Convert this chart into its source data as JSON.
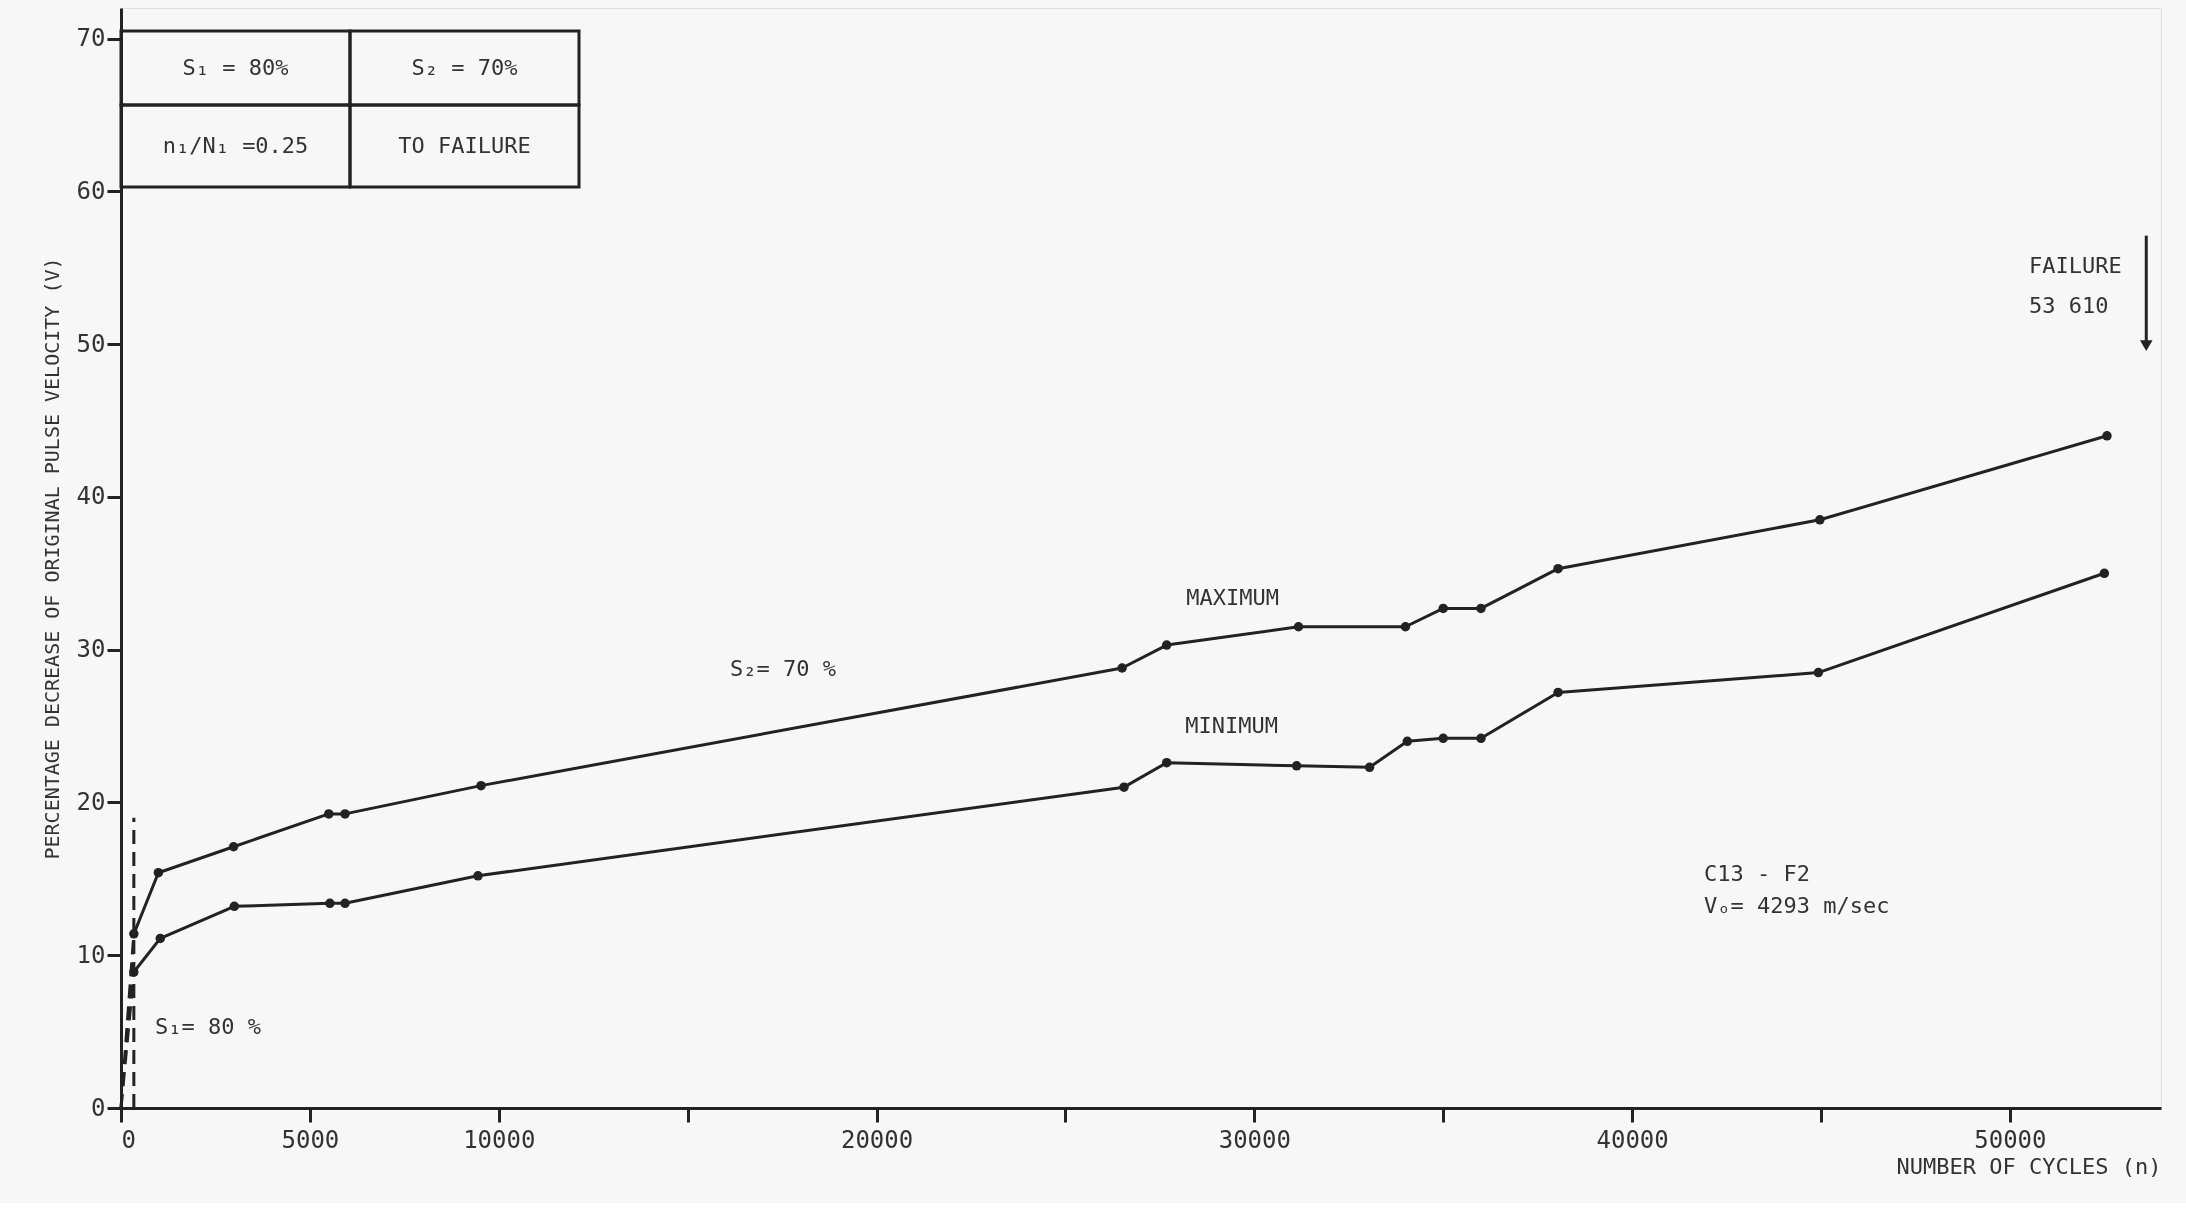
{
  "chart_data": {
    "type": "line",
    "xlabel": "NUMBER OF CYCLES (n)",
    "ylabel": "PERCENTAGE DECREASE OF ORIGINAL PULSE VELOCITY (V)",
    "xlim": [
      0,
      54000
    ],
    "ylim": [
      0,
      72
    ],
    "xticks": [
      0,
      5000,
      10000,
      {
        "value": 15000,
        "label": null
      },
      20000,
      {
        "value": 25000,
        "label": null
      },
      30000,
      {
        "value": 35000,
        "label": null
      },
      40000,
      {
        "value": 45000,
        "label": null
      },
      50000
    ],
    "yticks": [
      0,
      10,
      20,
      30,
      40,
      50,
      60,
      70
    ],
    "grid": false,
    "series": [
      {
        "name": "MAXIMUM",
        "color": "#222222",
        "marker": "circle",
        "line_style": "solid",
        "x": [
          340,
          990,
          2980,
          5500,
          5930,
          9530,
          26500,
          27680,
          31170,
          34000,
          35000,
          36000,
          38040,
          44970,
          52570
        ],
        "values": [
          11.4,
          15.4,
          17.1,
          19.25,
          19.25,
          21.1,
          28.8,
          30.3,
          31.5,
          31.5,
          32.7,
          32.7,
          35.3,
          38.5,
          44.0
        ]
      },
      {
        "name": "MINIMUM",
        "color": "#222222",
        "marker": "circle",
        "line_style": "solid",
        "x": [
          340,
          1040,
          3000,
          5530,
          5930,
          9450,
          26550,
          27680,
          31120,
          33050,
          34050,
          35000,
          36000,
          38040,
          44930,
          52500
        ],
        "values": [
          8.9,
          11.1,
          13.2,
          13.4,
          13.4,
          15.2,
          21.0,
          22.6,
          22.4,
          22.3,
          24.0,
          24.2,
          24.2,
          27.2,
          28.5,
          35.0
        ]
      },
      {
        "color": "#222222",
        "marker": "none",
        "line_style": "dashed",
        "x": [
          0,
          340
        ],
        "values": [
          0,
          11.4
        ]
      },
      {
        "color": "#222222",
        "marker": "none",
        "line_style": "dashed",
        "x": [
          0,
          340
        ],
        "values": [
          0,
          8.9
        ]
      },
      {
        "color": "#222222",
        "marker": "none",
        "line_style": "dashed",
        "x": [
          340,
          340
        ],
        "values": [
          0,
          19
        ]
      },
      {
        "color": "#222222",
        "marker": "triangle",
        "line_style": "solid",
        "x": [
          53610,
          53610
        ],
        "values": [
          57.1,
          49.9
        ]
      }
    ],
    "annotations": [
      "S₁ = 80%",
      "S₂ = 70%",
      "n₁/N₁ =0.25",
      "TO FAILURE",
      "S₂= 70 %",
      "S₁= 80 %",
      "C13 - F2\nVₒ= 4293 m/sec",
      "FAILURE\n53 610"
    ]
  }
}
